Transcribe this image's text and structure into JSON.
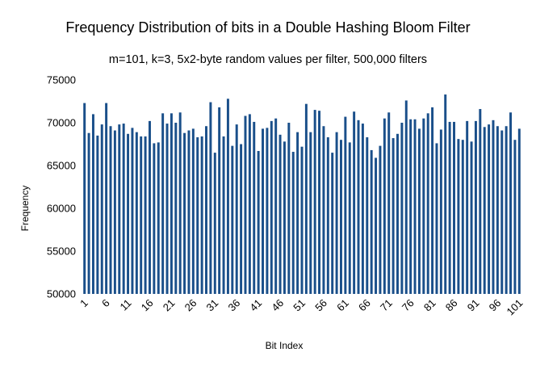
{
  "chart_data": {
    "type": "bar",
    "title": "Frequency Distribution of bits in a Double Hashing Bloom Filter",
    "subtitle": "m=101, k=3, 5x2-byte random values per filter, 500,000 filters",
    "xlabel": "Bit Index",
    "ylabel": "Frequency",
    "ylim": [
      50000,
      75000
    ],
    "y_ticks": [
      50000,
      55000,
      60000,
      65000,
      70000,
      75000
    ],
    "x_tick_labels": [
      "1",
      "6",
      "11",
      "16",
      "21",
      "26",
      "31",
      "36",
      "41",
      "46",
      "51",
      "56",
      "61",
      "66",
      "71",
      "76",
      "81",
      "86",
      "91",
      "96",
      "101"
    ],
    "grid": false,
    "legend": "none",
    "bar_color": "#1a4f8a",
    "x": [
      1,
      2,
      3,
      4,
      5,
      6,
      7,
      8,
      9,
      10,
      11,
      12,
      13,
      14,
      15,
      16,
      17,
      18,
      19,
      20,
      21,
      22,
      23,
      24,
      25,
      26,
      27,
      28,
      29,
      30,
      31,
      32,
      33,
      34,
      35,
      36,
      37,
      38,
      39,
      40,
      41,
      42,
      43,
      44,
      45,
      46,
      47,
      48,
      49,
      50,
      51,
      52,
      53,
      54,
      55,
      56,
      57,
      58,
      59,
      60,
      61,
      62,
      63,
      64,
      65,
      66,
      67,
      68,
      69,
      70,
      71,
      72,
      73,
      74,
      75,
      76,
      77,
      78,
      79,
      80,
      81,
      82,
      83,
      84,
      85,
      86,
      87,
      88,
      89,
      90,
      91,
      92,
      93,
      94,
      95,
      96,
      97,
      98,
      99,
      100,
      101
    ],
    "values": [
      72300,
      68800,
      71000,
      68500,
      69800,
      72300,
      69600,
      69100,
      69800,
      69900,
      68700,
      69400,
      68900,
      68400,
      68400,
      70200,
      67600,
      67700,
      71100,
      69900,
      71100,
      70000,
      71200,
      68800,
      69100,
      69300,
      68300,
      68400,
      69600,
      72400,
      66500,
      71800,
      68400,
      72800,
      67300,
      69800,
      67500,
      70800,
      71000,
      70100,
      66700,
      69300,
      69400,
      70200,
      70500,
      68600,
      67800,
      70000,
      66600,
      68900,
      67200,
      72200,
      68900,
      71500,
      71400,
      69600,
      68300,
      66500,
      68900,
      68000,
      70700,
      67700,
      71300,
      70300,
      69900,
      68300,
      66800,
      65900,
      67300,
      70500,
      71200,
      68200,
      68700,
      70000,
      72600,
      70400,
      70400,
      69300,
      70500,
      71100,
      71800,
      67600,
      69200,
      73300,
      70100,
      70100,
      68100,
      68000,
      70200,
      67800,
      70200,
      71600,
      69500,
      69800,
      70300,
      69600,
      69100,
      69600,
      71200,
      68000,
      69300
    ]
  }
}
